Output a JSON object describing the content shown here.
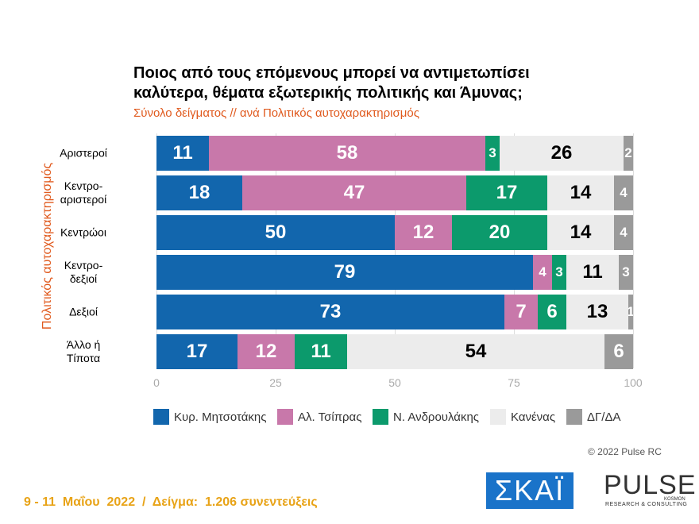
{
  "chart_data": {
    "type": "stacked-bar-horizontal",
    "title": "Ποιος από τους επόμενους μπορεί να αντιμετωπίσει\nκαλύτερα, θέματα εξωτερικής πολιτικής και Άμυνας;",
    "subtitle": "Σύνολο δείγματος // ανά Πολιτικός αυτοχαρακτηρισμός",
    "y_label": "Πολιτικός αυτοχαρακτηρισμός",
    "categories": [
      "Αριστεροί",
      "Κεντρο-\nαριστεροί",
      "Κεντρώοι",
      "Κεντρο-\nδεξιοί",
      "Δεξιοί",
      "Άλλο ή\nΤίποτα"
    ],
    "series": [
      {
        "name": "Κυρ. Μητσοτάκης",
        "color": "#1266ad",
        "label_color": "#ffffff",
        "values": [
          11,
          18,
          50,
          79,
          73,
          17
        ]
      },
      {
        "name": "Αλ. Τσίπρας",
        "color": "#c878aa",
        "label_color": "#ffffff",
        "values": [
          58,
          47,
          12,
          4,
          7,
          12
        ]
      },
      {
        "name": "Ν. Ανδρουλάκης",
        "color": "#0c9a6c",
        "label_color": "#ffffff",
        "values": [
          3,
          17,
          20,
          3,
          6,
          11
        ]
      },
      {
        "name": "Κανένας",
        "color": "#ececec",
        "label_color": "#000000",
        "values": [
          26,
          14,
          14,
          11,
          13,
          54
        ]
      },
      {
        "name": "ΔΓ/ΔΑ",
        "color": "#9a9a9a",
        "label_color": "#ffffff",
        "values": [
          2,
          4,
          4,
          3,
          1,
          6
        ]
      }
    ],
    "xlim": [
      0,
      100
    ],
    "xticks": [
      0,
      25,
      50,
      75,
      100
    ],
    "grid": true,
    "legend": "bottom",
    "footer": "9 - 11  Μαΐου  2022  /  Δείγμα:  1.206 συνεντεύξεις",
    "copyright": "© 2022 Pulse RC",
    "logo_skai": "ΣΚΑΪ",
    "logo_pulse": "PULSE",
    "logo_pulse_sub": "RESEARCH & CONSULTING",
    "logo_pulse_tag": "KOSMON"
  }
}
